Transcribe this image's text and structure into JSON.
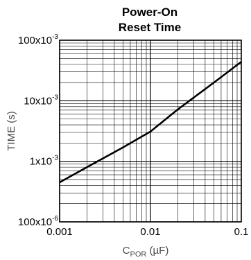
{
  "chart_data": {
    "type": "line",
    "title_line1": "Power-On",
    "title_line2": "Reset Time",
    "xlabel_main": "C",
    "xlabel_sub": "POR",
    "xlabel_unit": " (µF)",
    "ylabel": "TIME (s)",
    "xscale": "log",
    "yscale": "log",
    "xlim": [
      0.001,
      0.1
    ],
    "ylim": [
      0.0001,
      0.1
    ],
    "grid": true,
    "x_ticks": [
      "0.001",
      "0.01",
      "0.1"
    ],
    "y_ticks": [
      {
        "mant": "100x10",
        "exp": "-6"
      },
      {
        "mant": "1x10",
        "exp": "-3"
      },
      {
        "mant": "10x10",
        "exp": "-3"
      },
      {
        "mant": "100x10",
        "exp": "-3"
      }
    ],
    "series": [
      {
        "x": [
          0.001,
          0.002,
          0.005,
          0.01,
          0.02,
          0.05,
          0.1
        ],
        "y": [
          0.00045,
          0.0008,
          0.0017,
          0.0031,
          0.0072,
          0.02,
          0.044
        ]
      }
    ]
  }
}
